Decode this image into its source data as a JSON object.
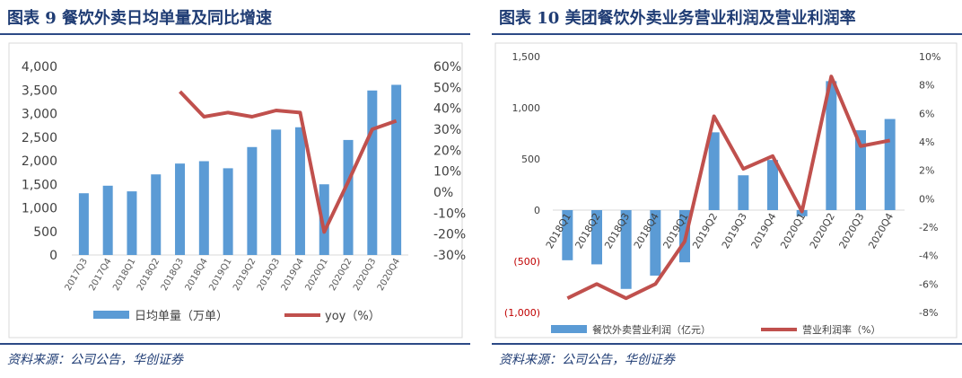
{
  "colors": {
    "bar": "#5b9bd5",
    "line": "#c0504d",
    "title": "#1f3c74",
    "rule": "#2c4a86",
    "negative_tick": "#c00000"
  },
  "chart_data": [
    {
      "type": "bar+line",
      "title": "图表 9 餐饮外卖日均单量及同比增速",
      "source": "资料来源：公司公告，华创证券",
      "categories": [
        "2017Q3",
        "2017Q4",
        "2018Q1",
        "2018Q2",
        "2018Q3",
        "2018Q4",
        "2019Q1",
        "2019Q2",
        "2019Q3",
        "2019Q4",
        "2020Q1",
        "2020Q2",
        "2020Q3",
        "2020Q4"
      ],
      "series": [
        {
          "name": "日均单量（万单）",
          "axis": "left",
          "type": "bar",
          "values": [
            1310,
            1470,
            1350,
            1710,
            1940,
            1990,
            1840,
            2290,
            2660,
            2710,
            1500,
            2440,
            3490,
            3610
          ]
        },
        {
          "name": "yoy（%）",
          "axis": "right",
          "type": "line",
          "values": [
            null,
            null,
            null,
            null,
            48,
            36,
            38,
            36,
            39,
            38,
            -19,
            5,
            30,
            34
          ]
        }
      ],
      "y_left": {
        "min": 0,
        "max": 4000,
        "ticks": [
          "0",
          "500",
          "1,000",
          "1,500",
          "2,000",
          "2,500",
          "3,000",
          "3,500",
          "4,000"
        ]
      },
      "y_right": {
        "min": -30,
        "max": 60,
        "ticks": [
          "-30%",
          "-20%",
          "-10%",
          "0%",
          "10%",
          "20%",
          "30%",
          "40%",
          "50%",
          "60%"
        ]
      },
      "legend": [
        "日均单量（万单）",
        "yoy（%）"
      ]
    },
    {
      "type": "bar+line",
      "title": "图表 10 美团餐饮外卖业务营业利润及营业利润率",
      "source": "资料来源：公司公告，华创证券",
      "categories": [
        "2018Q1",
        "2018Q2",
        "2018Q3",
        "2018Q4",
        "2019Q1",
        "2019Q2",
        "2019Q3",
        "2019Q4",
        "2020Q1",
        "2020Q2",
        "2020Q3",
        "2020Q4"
      ],
      "series": [
        {
          "name": "餐饮外卖营业利润（亿元）",
          "axis": "left",
          "type": "bar",
          "values": [
            -490,
            -530,
            -770,
            -640,
            -510,
            760,
            340,
            490,
            -60,
            1260,
            780,
            890
          ]
        },
        {
          "name": "营业利润率（%）",
          "axis": "right",
          "type": "line",
          "values": [
            -7.0,
            -6.0,
            -7.0,
            -6.0,
            -3.0,
            5.8,
            2.1,
            3.0,
            -0.9,
            8.6,
            3.7,
            4.1
          ]
        }
      ],
      "y_left": {
        "min": -1000,
        "max": 1500,
        "ticks": [
          "(1,000)",
          "(500)",
          "0",
          "500",
          "1,000",
          "1,500"
        ]
      },
      "y_right": {
        "min": -8,
        "max": 10,
        "ticks": [
          "-8%",
          "-6%",
          "-4%",
          "-2%",
          "0%",
          "2%",
          "4%",
          "6%",
          "8%",
          "10%"
        ]
      },
      "legend": [
        "餐饮外卖营业利润（亿元）",
        "营业利润率（%）"
      ]
    }
  ]
}
